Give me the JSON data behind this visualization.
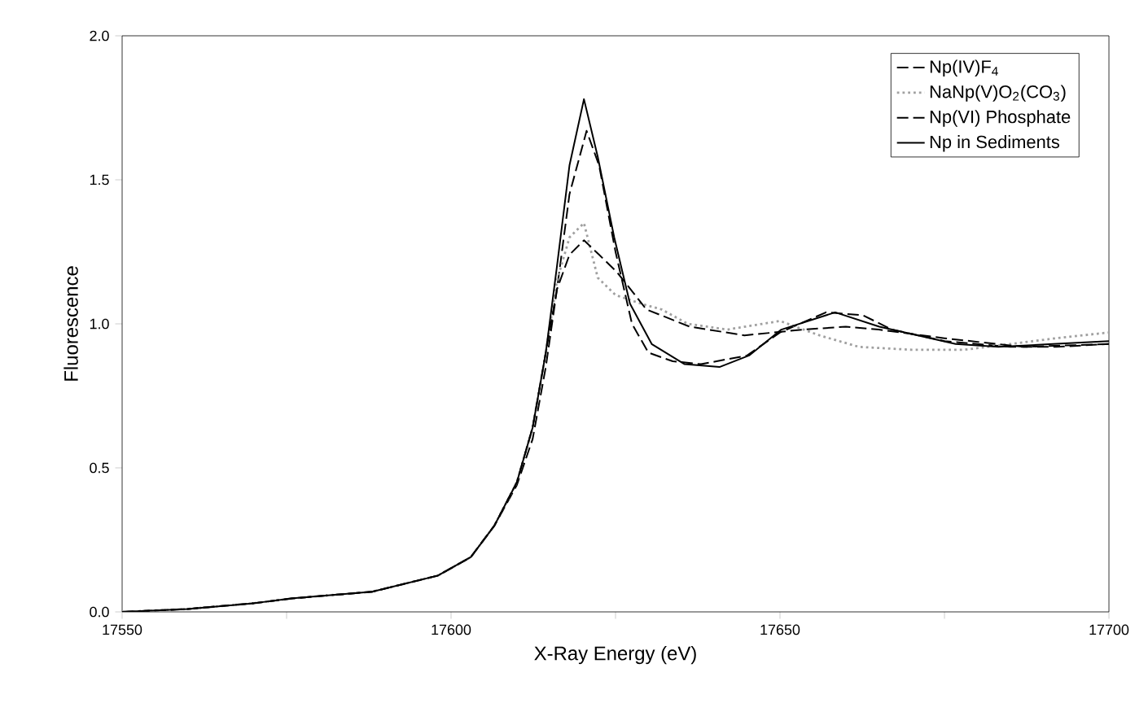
{
  "chart_data": {
    "type": "line",
    "xlabel": "X-Ray Energy (eV)",
    "ylabel": "Fluorescence",
    "xlim": [
      17550,
      17700
    ],
    "ylim": [
      0,
      2
    ],
    "xticks": [
      17550,
      {
        "value": 17575,
        "label": null
      },
      17600,
      {
        "value": 17625,
        "label": null
      },
      17650,
      {
        "value": 17675,
        "label": null
      },
      17700
    ],
    "yticks": [
      {
        "value": 0,
        "label": "0.0"
      },
      {
        "value": 0.5,
        "label": "0.5"
      },
      {
        "value": 1,
        "label": "1.0"
      },
      {
        "value": 1.5,
        "label": "1.5"
      },
      {
        "value": 2,
        "label": "2.0"
      }
    ],
    "legend": "top right",
    "grid": false,
    "marker": "none",
    "series": [
      {
        "name": "Np(IV)F$_{4}$",
        "color": "#000000",
        "line_style": "dashed",
        "x": [
          17550,
          17560,
          17570,
          17576,
          17588,
          17598,
          17603,
          17606.6,
          17610,
          17612.4,
          17614.4,
          17616.1,
          17618,
          17620.6,
          17622.5,
          17625,
          17627.5,
          17630,
          17633.7,
          17638,
          17645,
          17650,
          17657,
          17662.6,
          17667,
          17675,
          17685,
          17692,
          17700
        ],
        "values": [
          0.0,
          0.01,
          0.03,
          0.047,
          0.07,
          0.126,
          0.19,
          0.3,
          0.44,
          0.6,
          0.85,
          1.12,
          1.45,
          1.67,
          1.55,
          1.25,
          1.0,
          0.9,
          0.87,
          0.86,
          0.89,
          0.97,
          1.04,
          1.03,
          0.98,
          0.94,
          0.92,
          0.92,
          0.93
        ]
      },
      {
        "name": "NaNp(V)O$_{2}$(CO$_{3}$)",
        "color": "#a0a0a0",
        "line_style": "dotted",
        "x": [
          17550,
          17560,
          17570,
          17576,
          17588,
          17598,
          17603,
          17606.6,
          17610,
          17612.4,
          17614.4,
          17616.1,
          17618,
          17620.2,
          17622.3,
          17625,
          17628.9,
          17632,
          17636,
          17642,
          17650,
          17656,
          17662,
          17670,
          17678,
          17685,
          17692,
          17700
        ],
        "values": [
          0.0,
          0.01,
          0.03,
          0.047,
          0.07,
          0.126,
          0.19,
          0.3,
          0.45,
          0.64,
          0.9,
          1.15,
          1.3,
          1.35,
          1.16,
          1.1,
          1.07,
          1.05,
          1.0,
          0.98,
          1.01,
          0.96,
          0.92,
          0.91,
          0.91,
          0.93,
          0.95,
          0.97
        ]
      },
      {
        "name": "Np(VI) Phosphate",
        "color": "#000000",
        "line_style": "dashed",
        "x": [
          17550,
          17560,
          17570,
          17576,
          17588,
          17598,
          17603,
          17606.6,
          17610,
          17612.4,
          17614.4,
          17616.1,
          17618,
          17620.2,
          17622.5,
          17625.2,
          17629.7,
          17636.3,
          17644.6,
          17653.5,
          17660,
          17665,
          17675,
          17687,
          17700
        ],
        "values": [
          0.0,
          0.01,
          0.03,
          0.047,
          0.07,
          0.126,
          0.19,
          0.3,
          0.45,
          0.64,
          0.9,
          1.12,
          1.24,
          1.29,
          1.24,
          1.18,
          1.05,
          0.99,
          0.96,
          0.98,
          0.99,
          0.98,
          0.95,
          0.92,
          0.93
        ]
      },
      {
        "name": "Np in Sediments",
        "color": "#000000",
        "line_style": "solid",
        "x": [
          17550,
          17560,
          17570,
          17576,
          17588,
          17598,
          17603,
          17606.6,
          17610,
          17612.4,
          17614.4,
          17616.1,
          17618,
          17620.2,
          17622.3,
          17624.8,
          17627.2,
          17630.5,
          17635.5,
          17640.8,
          17645.3,
          17650.2,
          17658.4,
          17665.1,
          17676.7,
          17683.2,
          17691.5,
          17700
        ],
        "values": [
          0.0,
          0.01,
          0.03,
          0.047,
          0.07,
          0.126,
          0.19,
          0.3,
          0.45,
          0.64,
          0.9,
          1.2,
          1.55,
          1.78,
          1.58,
          1.3,
          1.07,
          0.93,
          0.86,
          0.85,
          0.89,
          0.98,
          1.04,
          0.99,
          0.93,
          0.92,
          0.93,
          0.94
        ]
      }
    ]
  }
}
